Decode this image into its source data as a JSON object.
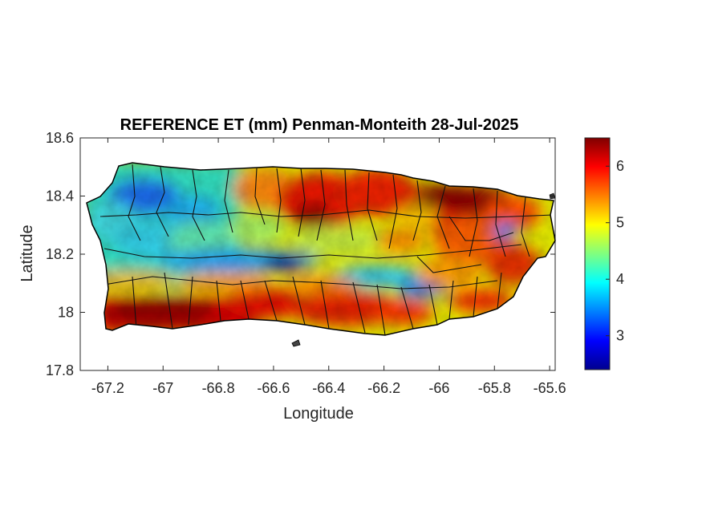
{
  "figure": {
    "title": "REFERENCE ET (mm) Penman-Monteith 28-Jul-2025",
    "xlabel": "Longitude",
    "ylabel": "Latitude"
  },
  "chart_data": {
    "type": "heatmap",
    "title": "REFERENCE ET (mm) Penman-Monteith 28-Jul-2025",
    "xlabel": "Longitude",
    "ylabel": "Latitude",
    "xlim": [
      -67.3,
      -65.58
    ],
    "ylim": [
      17.8,
      18.6
    ],
    "xticks": [
      -67.2,
      -67,
      -66.8,
      -66.6,
      -66.4,
      -66.2,
      -66,
      -65.8,
      -65.6
    ],
    "xtick_labels": [
      "-67.2",
      "-67",
      "-66.8",
      "-66.6",
      "-66.4",
      "-66.2",
      "-66",
      "-65.8",
      "-65.6"
    ],
    "yticks": [
      17.8,
      18,
      18.2,
      18.4,
      18.6
    ],
    "ytick_labels": [
      "17.8",
      "18",
      "18.2",
      "18.4",
      "18.6"
    ],
    "colormap": "jet",
    "colorbar": {
      "range": [
        2.4,
        6.5
      ],
      "ticks": [
        3,
        4,
        5,
        6
      ],
      "tick_labels": [
        "3",
        "4",
        "5",
        "6"
      ]
    },
    "grid": false,
    "region": "Puerto Rico",
    "pattern": "low ET (about 3-4 mm) in the west and along the central mountain ridge; high ET (about 5.5-6.5 mm) on the south coast and in the northeast"
  }
}
